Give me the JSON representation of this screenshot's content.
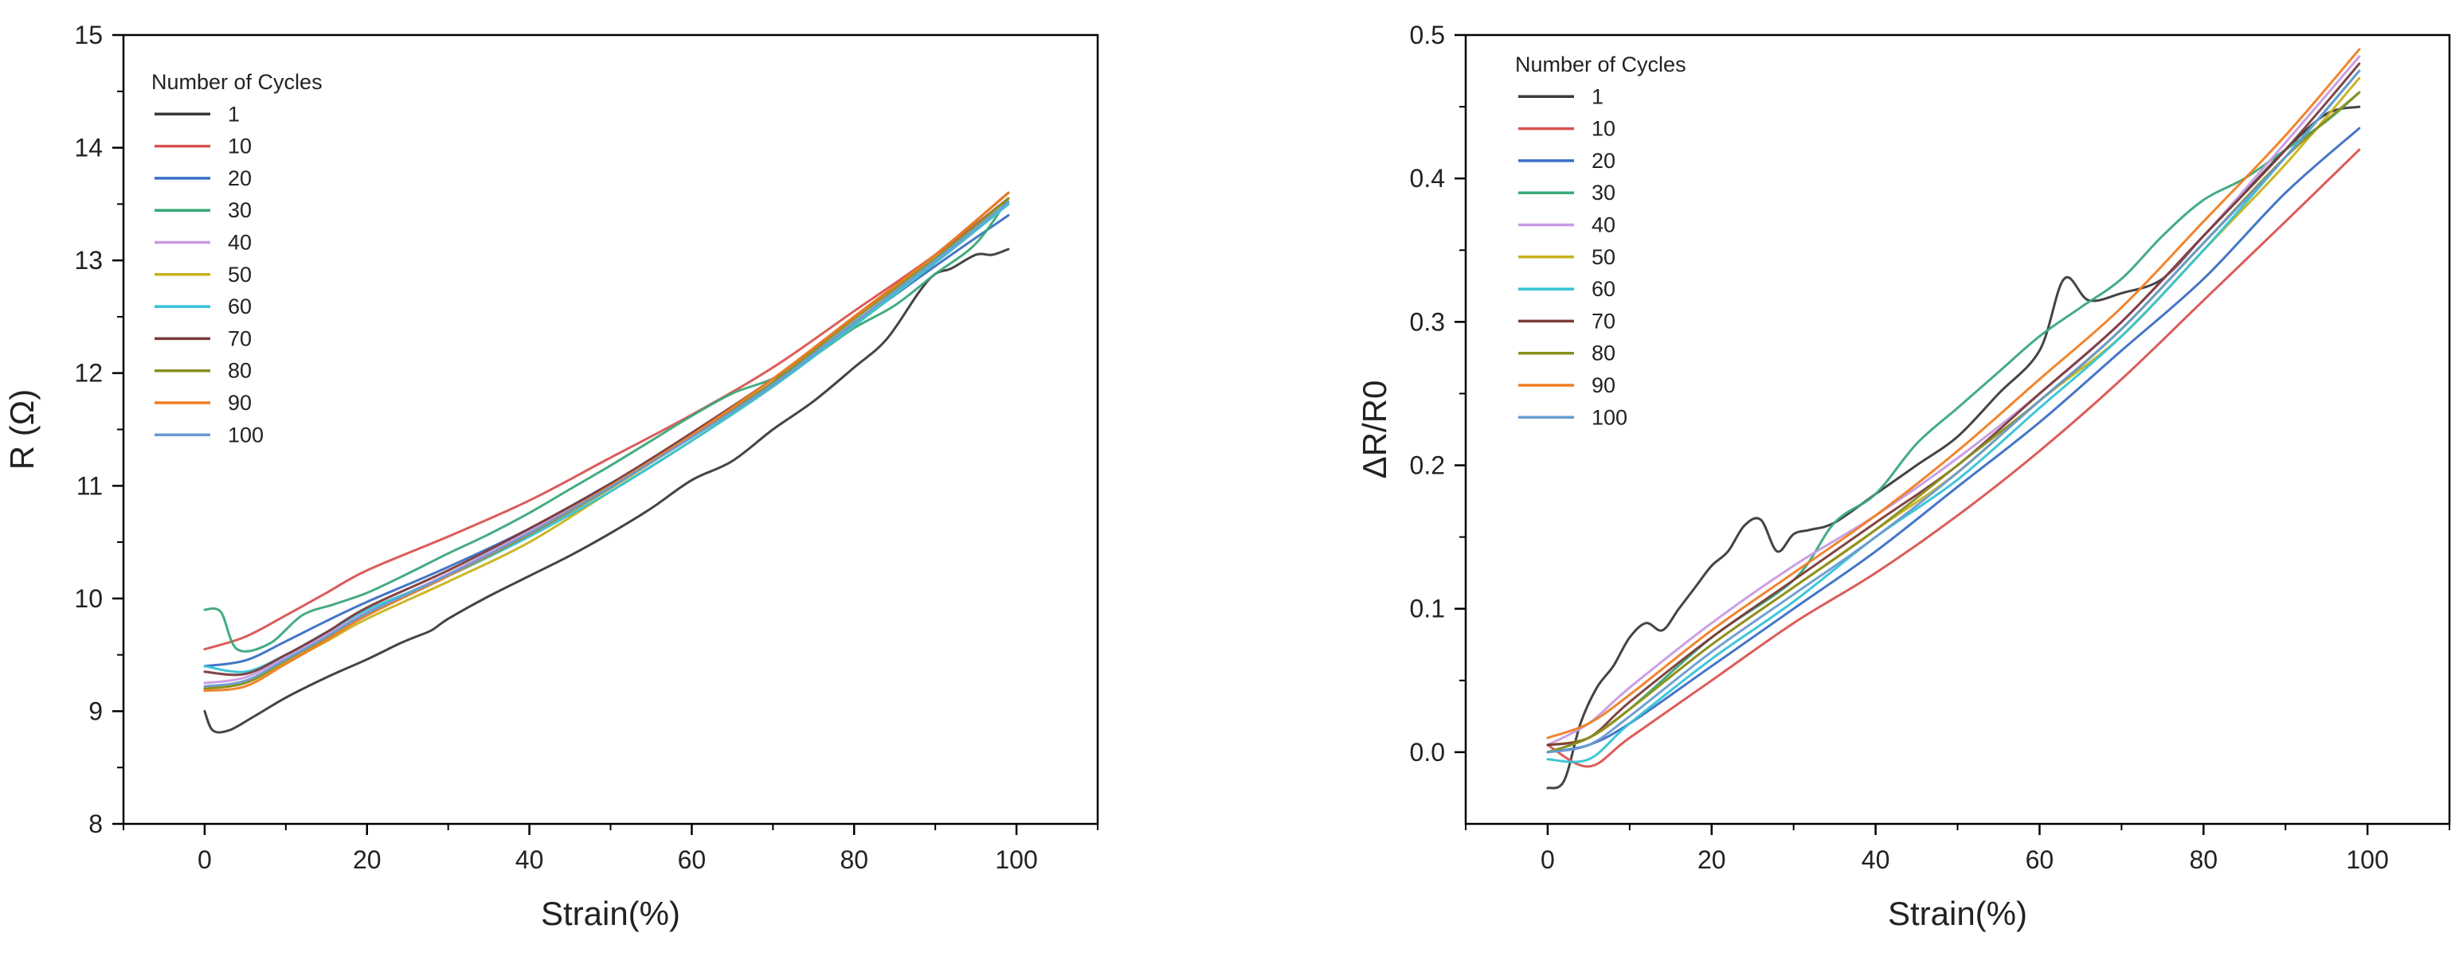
{
  "chart_data": [
    {
      "type": "line",
      "xlabel": "Strain(%)",
      "ylabel": "R (Ω)",
      "xlim": [
        -10,
        110
      ],
      "ylim": [
        8,
        15
      ],
      "xticks": [
        0,
        20,
        40,
        60,
        80,
        100
      ],
      "yticks": [
        8,
        9,
        10,
        11,
        12,
        13,
        14,
        15
      ],
      "legend": {
        "title": "Number of Cycles",
        "position": "top-left"
      },
      "series": [
        {
          "name": "1",
          "color": "#3a3a3a",
          "x": [
            0,
            1,
            3,
            6,
            10,
            15,
            20,
            24,
            26,
            28,
            30,
            35,
            40,
            45,
            50,
            55,
            60,
            65,
            70,
            75,
            80,
            84,
            88,
            90,
            92,
            95,
            97,
            99
          ],
          "y": [
            9.0,
            8.83,
            8.83,
            8.95,
            9.12,
            9.3,
            9.46,
            9.6,
            9.66,
            9.72,
            9.82,
            10.02,
            10.2,
            10.38,
            10.58,
            10.8,
            11.05,
            11.22,
            11.5,
            11.75,
            12.05,
            12.3,
            12.72,
            12.88,
            12.93,
            13.05,
            13.05,
            13.1
          ]
        },
        {
          "name": "10",
          "color": "#d9534f",
          "x": [
            0,
            5,
            10,
            15,
            20,
            30,
            40,
            50,
            60,
            70,
            80,
            90,
            99
          ],
          "y": [
            9.55,
            9.66,
            9.85,
            10.05,
            10.25,
            10.55,
            10.87,
            11.25,
            11.63,
            12.05,
            12.55,
            13.05,
            13.55
          ]
        },
        {
          "name": "20",
          "color": "#3a6fc4",
          "x": [
            0,
            5,
            10,
            15,
            20,
            30,
            40,
            50,
            60,
            70,
            80,
            90,
            99
          ],
          "y": [
            9.4,
            9.45,
            9.62,
            9.8,
            9.97,
            10.28,
            10.62,
            11.02,
            11.45,
            11.9,
            12.43,
            12.95,
            13.4
          ]
        },
        {
          "name": "30",
          "color": "#3aa87a",
          "x": [
            0,
            2,
            4,
            8,
            12,
            16,
            20,
            25,
            30,
            35,
            40,
            45,
            50,
            55,
            60,
            65,
            70,
            75,
            80,
            85,
            90,
            95,
            99
          ],
          "y": [
            9.9,
            9.88,
            9.55,
            9.6,
            9.85,
            9.95,
            10.05,
            10.22,
            10.4,
            10.57,
            10.76,
            10.97,
            11.18,
            11.4,
            11.62,
            11.82,
            11.95,
            12.15,
            12.4,
            12.6,
            12.88,
            13.15,
            13.55
          ]
        },
        {
          "name": "40",
          "color": "#c79ae3",
          "x": [
            0,
            5,
            10,
            15,
            20,
            30,
            40,
            50,
            60,
            70,
            80,
            90,
            99
          ],
          "y": [
            9.25,
            9.3,
            9.48,
            9.68,
            9.88,
            10.22,
            10.6,
            11.0,
            11.45,
            11.9,
            12.45,
            12.98,
            13.5
          ]
        },
        {
          "name": "50",
          "color": "#c9b21b",
          "x": [
            0,
            5,
            10,
            15,
            20,
            30,
            40,
            50,
            60,
            70,
            80,
            90,
            99
          ],
          "y": [
            9.2,
            9.25,
            9.43,
            9.62,
            9.82,
            10.15,
            10.5,
            10.95,
            11.4,
            11.88,
            12.42,
            12.98,
            13.5
          ]
        },
        {
          "name": "60",
          "color": "#35c3d6",
          "x": [
            0,
            5,
            10,
            15,
            20,
            30,
            40,
            50,
            60,
            70,
            80,
            90,
            99
          ],
          "y": [
            9.4,
            9.35,
            9.5,
            9.7,
            9.9,
            10.2,
            10.55,
            10.95,
            11.4,
            11.88,
            12.42,
            12.98,
            13.5
          ]
        },
        {
          "name": "70",
          "color": "#7b3b3b",
          "x": [
            0,
            5,
            10,
            15,
            20,
            30,
            40,
            50,
            60,
            70,
            80,
            90,
            99
          ],
          "y": [
            9.35,
            9.33,
            9.5,
            9.7,
            9.92,
            10.25,
            10.62,
            11.02,
            11.47,
            11.95,
            12.5,
            13.05,
            13.6
          ]
        },
        {
          "name": "80",
          "color": "#8a8f1f",
          "x": [
            0,
            5,
            10,
            15,
            20,
            30,
            40,
            50,
            60,
            70,
            80,
            90,
            99
          ],
          "y": [
            9.2,
            9.25,
            9.45,
            9.65,
            9.86,
            10.2,
            10.57,
            10.98,
            11.44,
            11.92,
            12.48,
            13.02,
            13.55
          ]
        },
        {
          "name": "90",
          "color": "#f07d22",
          "x": [
            0,
            5,
            10,
            15,
            20,
            30,
            40,
            50,
            60,
            70,
            80,
            90,
            99
          ],
          "y": [
            9.18,
            9.22,
            9.42,
            9.63,
            9.85,
            10.2,
            10.58,
            11.0,
            11.45,
            11.95,
            12.5,
            13.05,
            13.6
          ]
        },
        {
          "name": "100",
          "color": "#6a9bd0",
          "x": [
            0,
            5,
            10,
            15,
            20,
            30,
            40,
            50,
            60,
            70,
            80,
            90,
            99
          ],
          "y": [
            9.22,
            9.27,
            9.46,
            9.66,
            9.87,
            10.21,
            10.58,
            10.99,
            11.43,
            11.9,
            12.45,
            13.0,
            13.52
          ]
        }
      ]
    },
    {
      "type": "line",
      "xlabel": "Strain(%)",
      "ylabel": "ΔR/R0",
      "xlim": [
        -10,
        110
      ],
      "ylim": [
        -0.05,
        0.5
      ],
      "xticks": [
        0,
        20,
        40,
        60,
        80,
        100
      ],
      "yticks": [
        0.0,
        0.1,
        0.2,
        0.3,
        0.4,
        0.5
      ],
      "ytick_labels": [
        "0.0",
        "0.1",
        "0.2",
        "0.3",
        "0.4",
        "0.5"
      ],
      "legend": {
        "title": "Number of Cycles",
        "position": "top-left"
      },
      "series": [
        {
          "name": "1",
          "color": "#3a3a3a",
          "x": [
            0,
            2,
            4,
            6,
            8,
            10,
            12,
            14,
            16,
            18,
            20,
            22,
            24,
            26,
            28,
            30,
            32,
            35,
            40,
            45,
            50,
            55,
            60,
            63,
            66,
            70,
            75,
            80,
            85,
            90,
            95,
            99
          ],
          "y": [
            -0.025,
            -0.02,
            0.02,
            0.045,
            0.06,
            0.08,
            0.09,
            0.085,
            0.1,
            0.115,
            0.13,
            0.14,
            0.158,
            0.162,
            0.14,
            0.152,
            0.155,
            0.16,
            0.18,
            0.2,
            0.22,
            0.25,
            0.28,
            0.33,
            0.315,
            0.32,
            0.33,
            0.36,
            0.39,
            0.42,
            0.445,
            0.45
          ]
        },
        {
          "name": "10",
          "color": "#d9534f",
          "x": [
            0,
            5,
            10,
            20,
            30,
            40,
            50,
            60,
            70,
            80,
            90,
            99
          ],
          "y": [
            0.005,
            -0.01,
            0.01,
            0.05,
            0.09,
            0.125,
            0.165,
            0.21,
            0.26,
            0.315,
            0.37,
            0.42
          ]
        },
        {
          "name": "20",
          "color": "#3a6fc4",
          "x": [
            0,
            5,
            10,
            20,
            30,
            40,
            50,
            60,
            70,
            80,
            90,
            99
          ],
          "y": [
            0.0,
            0.005,
            0.02,
            0.06,
            0.1,
            0.14,
            0.185,
            0.23,
            0.28,
            0.33,
            0.39,
            0.435
          ]
        },
        {
          "name": "30",
          "color": "#3aa87a",
          "x": [
            0,
            5,
            10,
            20,
            30,
            35,
            40,
            45,
            50,
            55,
            60,
            65,
            70,
            75,
            80,
            85,
            90,
            95,
            99
          ],
          "y": [
            0.0,
            0.01,
            0.03,
            0.08,
            0.12,
            0.16,
            0.18,
            0.215,
            0.24,
            0.265,
            0.29,
            0.31,
            0.33,
            0.36,
            0.385,
            0.4,
            0.42,
            0.44,
            0.46
          ]
        },
        {
          "name": "40",
          "color": "#c79ae3",
          "x": [
            0,
            5,
            10,
            20,
            30,
            40,
            50,
            60,
            70,
            80,
            90,
            99
          ],
          "y": [
            0.005,
            0.02,
            0.045,
            0.09,
            0.13,
            0.165,
            0.205,
            0.25,
            0.3,
            0.36,
            0.425,
            0.485
          ]
        },
        {
          "name": "50",
          "color": "#c9b21b",
          "x": [
            0,
            5,
            10,
            20,
            30,
            40,
            50,
            60,
            70,
            80,
            90,
            99
          ],
          "y": [
            0.005,
            0.01,
            0.03,
            0.075,
            0.115,
            0.155,
            0.195,
            0.245,
            0.29,
            0.35,
            0.41,
            0.47
          ]
        },
        {
          "name": "60",
          "color": "#35c3d6",
          "x": [
            0,
            5,
            10,
            20,
            30,
            40,
            50,
            60,
            70,
            80,
            90,
            99
          ],
          "y": [
            -0.005,
            -0.005,
            0.02,
            0.065,
            0.105,
            0.15,
            0.19,
            0.24,
            0.29,
            0.35,
            0.415,
            0.475
          ]
        },
        {
          "name": "70",
          "color": "#7b3b3b",
          "x": [
            0,
            5,
            10,
            20,
            30,
            40,
            50,
            60,
            70,
            80,
            90,
            99
          ],
          "y": [
            0.005,
            0.01,
            0.035,
            0.08,
            0.12,
            0.16,
            0.2,
            0.25,
            0.3,
            0.36,
            0.42,
            0.48
          ]
        },
        {
          "name": "80",
          "color": "#8a8f1f",
          "x": [
            0,
            5,
            10,
            20,
            30,
            40,
            50,
            60,
            70,
            80,
            90,
            99
          ],
          "y": [
            0.0,
            0.01,
            0.03,
            0.075,
            0.115,
            0.155,
            0.2,
            0.245,
            0.295,
            0.355,
            0.415,
            0.46
          ]
        },
        {
          "name": "90",
          "color": "#f07d22",
          "x": [
            0,
            5,
            10,
            20,
            30,
            40,
            50,
            60,
            70,
            80,
            90,
            99
          ],
          "y": [
            0.01,
            0.02,
            0.04,
            0.085,
            0.125,
            0.165,
            0.21,
            0.26,
            0.31,
            0.37,
            0.43,
            0.49
          ]
        },
        {
          "name": "100",
          "color": "#6a9bd0",
          "x": [
            0,
            5,
            10,
            20,
            30,
            40,
            50,
            60,
            70,
            80,
            90,
            99
          ],
          "y": [
            0.0,
            0.005,
            0.025,
            0.07,
            0.11,
            0.15,
            0.195,
            0.245,
            0.295,
            0.355,
            0.415,
            0.475
          ]
        }
      ]
    }
  ]
}
